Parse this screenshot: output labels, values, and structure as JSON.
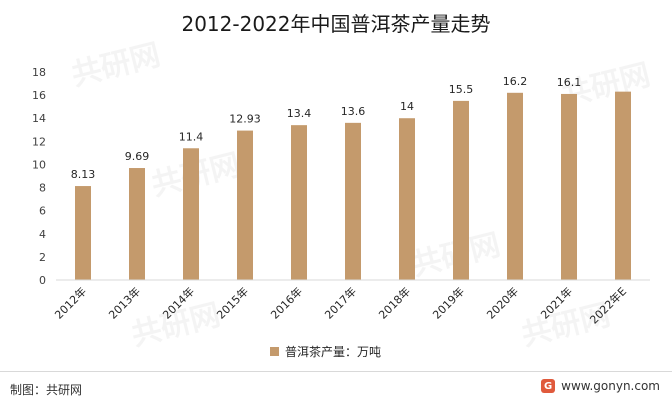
{
  "title": "2012-2022年中国普洱茶产量走势",
  "source": "制图：共研网",
  "website": "www.gonyn.com",
  "watermark": "共研网",
  "colors": {
    "bar": "#c49a6c",
    "axis": "#d9d9d9",
    "grid": "#ececec"
  },
  "chart_data": {
    "type": "bar",
    "title": "2012-2022年中国普洱茶产量走势",
    "categories": [
      "2012年",
      "2013年",
      "2014年",
      "2015年",
      "2016年",
      "2017年",
      "2018年",
      "2019年",
      "2020年",
      "2021年",
      "2022年E"
    ],
    "series": [
      {
        "name": "普洱茶产量：万吨",
        "values": [
          8.13,
          9.69,
          11.4,
          12.93,
          13.4,
          13.6,
          14,
          15.5,
          16.2,
          16.1,
          16.3
        ]
      }
    ],
    "data_labels": [
      "8.13",
      "9.69",
      "11.4",
      "12.93",
      "13.4",
      "13.6",
      "14",
      "15.5",
      "16.2",
      "16.1",
      ""
    ],
    "ylim": [
      0,
      18
    ],
    "yticks": [
      0,
      2,
      4,
      6,
      8,
      10,
      12,
      14,
      16,
      18
    ],
    "xlabel": "",
    "ylabel": "",
    "legend_position": "bottom",
    "grid": false
  }
}
